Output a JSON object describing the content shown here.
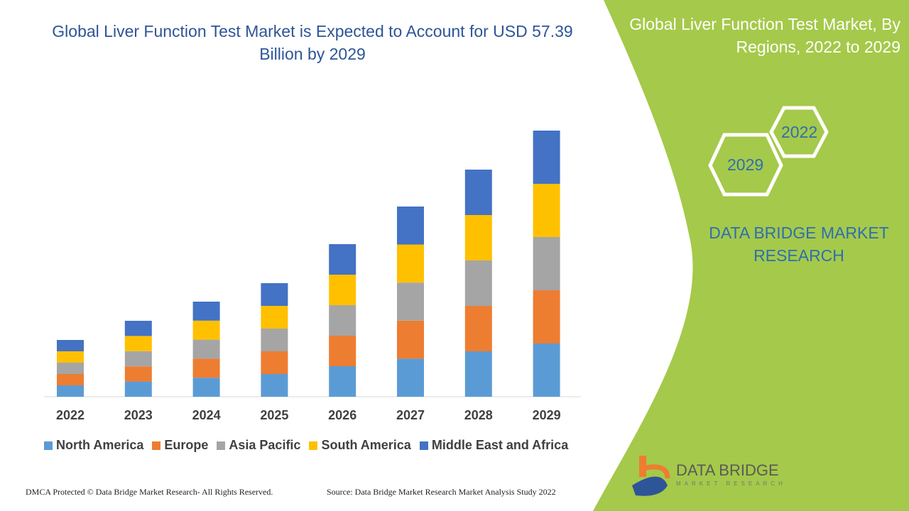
{
  "title": "Global Liver Function Test Market is Expected to Account for USD 57.39 Billion by 2029",
  "side_panel": {
    "title": "Global Liver Function Test Market, By Regions, 2022 to 2029",
    "hex_labels": [
      "2022",
      "2029"
    ],
    "brand": "DATA BRIDGE MARKET RESEARCH",
    "logo_text": "DATA BRIDGE",
    "logo_subtext": "MARKET RESEARCH",
    "panel_color": "#a5c94a"
  },
  "footer": {
    "left": "DMCA Protected © Data Bridge Market Research- All Rights Reserved.",
    "right": "Source: Data Bridge Market Research Market Analysis Study 2022"
  },
  "chart_data": {
    "type": "bar",
    "stacked": true,
    "title": "Global Liver Function Test Market is Expected to Account for USD 57.39 Billion by 2029",
    "categories": [
      "2022",
      "2023",
      "2024",
      "2025",
      "2026",
      "2027",
      "2028",
      "2029"
    ],
    "series": [
      {
        "name": "North America",
        "color": "#5b9bd5",
        "values": [
          16,
          21.4,
          26.8,
          32,
          43,
          53.6,
          64,
          75
        ]
      },
      {
        "name": "Europe",
        "color": "#ed7d31",
        "values": [
          16,
          21.4,
          26.8,
          32,
          43,
          53.6,
          64,
          75
        ]
      },
      {
        "name": "Asia Pacific",
        "color": "#a5a5a5",
        "values": [
          16,
          21.4,
          26.8,
          32,
          43,
          53.6,
          64,
          75
        ]
      },
      {
        "name": "South America",
        "color": "#ffc000",
        "values": [
          16,
          21.4,
          26.8,
          32,
          43,
          53.6,
          64,
          75
        ]
      },
      {
        "name": "Middle East and Africa",
        "color": "#4472c4",
        "values": [
          16,
          21.4,
          26.8,
          32,
          43,
          53.6,
          64,
          75
        ]
      }
    ],
    "yaxis_shown": false,
    "grid": false,
    "legend_position": "bottom"
  }
}
